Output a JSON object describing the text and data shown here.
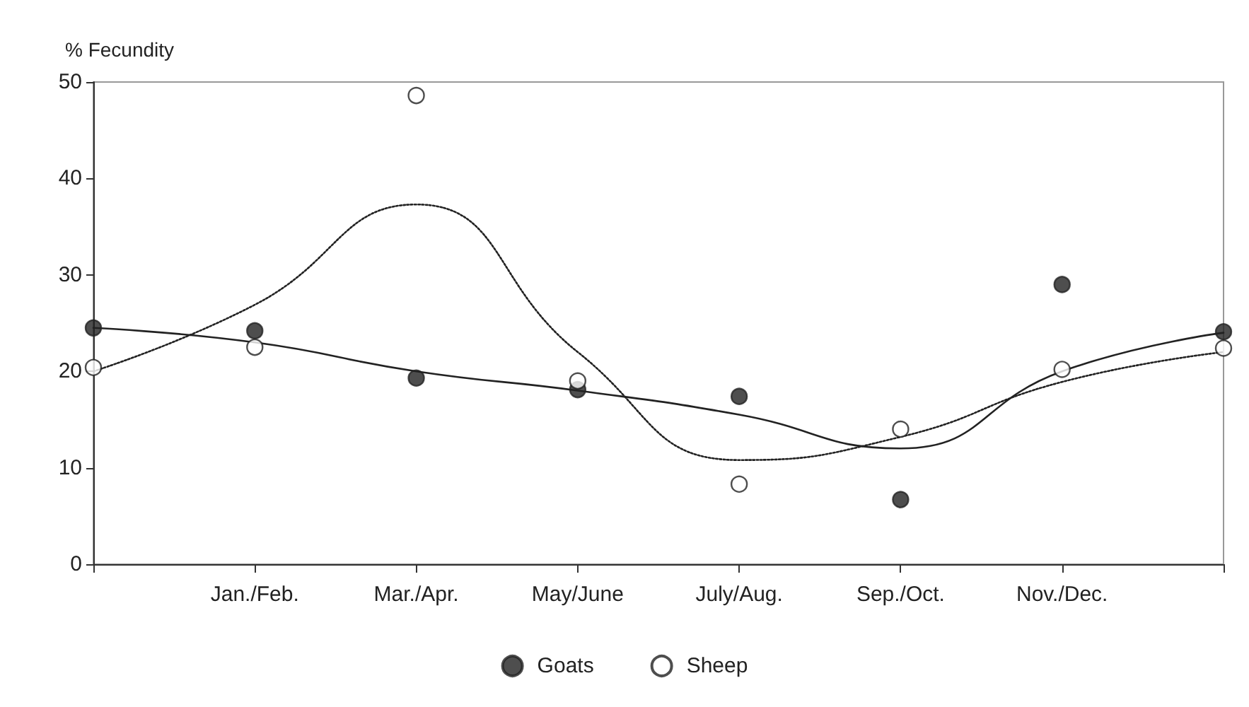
{
  "chart_data": {
    "type": "scatter",
    "ylabel": "% Fecundity",
    "categories": [
      null,
      "Jan./Feb.",
      "Mar./Apr.",
      "May/June",
      "July/Aug.",
      "Sep./Oct.",
      "Nov./Dec.",
      null
    ],
    "series": [
      {
        "name": "Goats",
        "color": "#222222",
        "marker": "circle",
        "values": [
          24.5,
          24.2,
          19.3,
          18.1,
          17.4,
          6.7,
          29,
          24.1
        ]
      },
      {
        "type": "line",
        "color": "#222222",
        "line_style": "solid",
        "values": [
          24.5,
          23,
          20,
          18,
          15.5,
          12,
          20,
          24
        ]
      },
      {
        "name": "Sheep",
        "color": "#222222",
        "marker": "circle",
        "values": [
          20.4,
          22.5,
          48.6,
          19,
          8.3,
          14,
          20.2,
          22.4
        ]
      },
      {
        "type": "line",
        "color": "#222222",
        "line_style": "dotted",
        "values": [
          20,
          26.9,
          37.3,
          22,
          10.8,
          13.2,
          18.9,
          22
        ]
      }
    ],
    "ylim": [
      0,
      50
    ],
    "yticks": [
      0,
      10,
      20,
      30,
      40,
      50
    ],
    "grid": false,
    "legend": "bottom"
  }
}
